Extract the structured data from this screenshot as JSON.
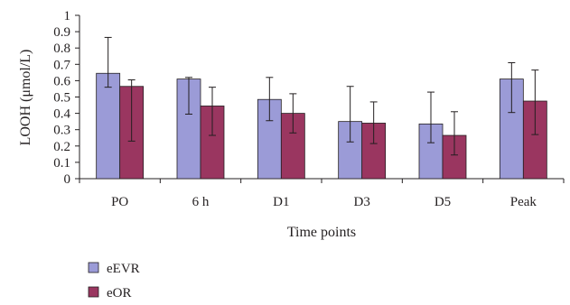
{
  "chart_data": {
    "type": "bar",
    "xlabel": "Time points",
    "ylabel": "LOOH (μmol/L)",
    "categories": [
      "PO",
      "6 h",
      "D1",
      "D3",
      "D5",
      "Peak"
    ],
    "ylim": [
      0,
      1
    ],
    "yticks": [
      "0",
      "0.1",
      "0.2",
      "0.3",
      "0.4",
      "0.5",
      "0.6",
      "0.7",
      "0.8",
      "0.9",
      "1"
    ],
    "grid": false,
    "legend_position": "bottom-left",
    "series": [
      {
        "name": "eEVR",
        "color": "#9b9bd7",
        "values": [
          0.645,
          0.61,
          0.485,
          0.35,
          0.335,
          0.61
        ],
        "err_upper": [
          0.865,
          0.62,
          0.62,
          0.565,
          0.53,
          0.71
        ],
        "err_lower": [
          0.56,
          0.395,
          0.355,
          0.225,
          0.22,
          0.405
        ]
      },
      {
        "name": "eOR",
        "color": "#9a3660",
        "values": [
          0.565,
          0.445,
          0.4,
          0.34,
          0.265,
          0.475
        ],
        "err_upper": [
          0.605,
          0.56,
          0.52,
          0.47,
          0.41,
          0.665
        ],
        "err_lower": [
          0.23,
          0.265,
          0.28,
          0.215,
          0.145,
          0.27
        ]
      }
    ]
  }
}
